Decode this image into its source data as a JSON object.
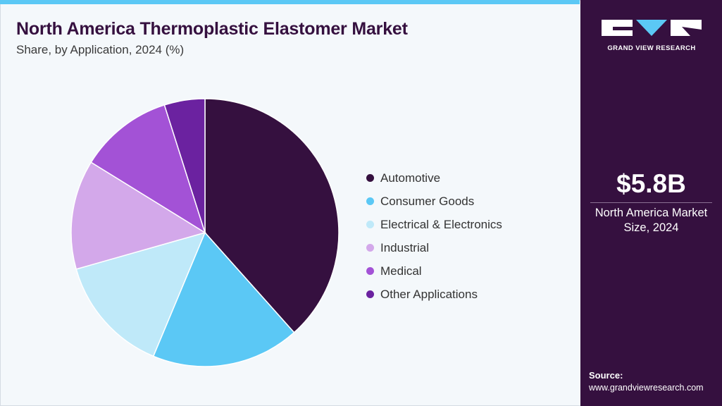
{
  "header": {
    "title": "North America Thermoplastic Elastomer Market",
    "subtitle": "Share, by Application, 2024 (%)"
  },
  "chart_data": {
    "type": "pie",
    "title": "North America Thermoplastic Elastomer Market",
    "subtitle": "Share, by Application, 2024 (%)",
    "categories": [
      "Automotive",
      "Consumer Goods",
      "Electrical & Electronics",
      "Industrial",
      "Medical",
      "Other Applications"
    ],
    "values": [
      38.4,
      17.9,
      14.3,
      13.2,
      11.3,
      4.9
    ],
    "colors": [
      "#35103f",
      "#5bc8f5",
      "#bfe9f9",
      "#d3a8ea",
      "#a352d6",
      "#6b22a0"
    ],
    "legend": "right",
    "start_angle": "top, clockwise"
  },
  "side": {
    "brand": "GRAND VIEW RESEARCH",
    "market_value": "$5.8B",
    "market_label_line1": "North America Market",
    "market_label_line2": "Size, 2024",
    "source_title": "Source:",
    "source_url": "www.grandviewresearch.com"
  }
}
